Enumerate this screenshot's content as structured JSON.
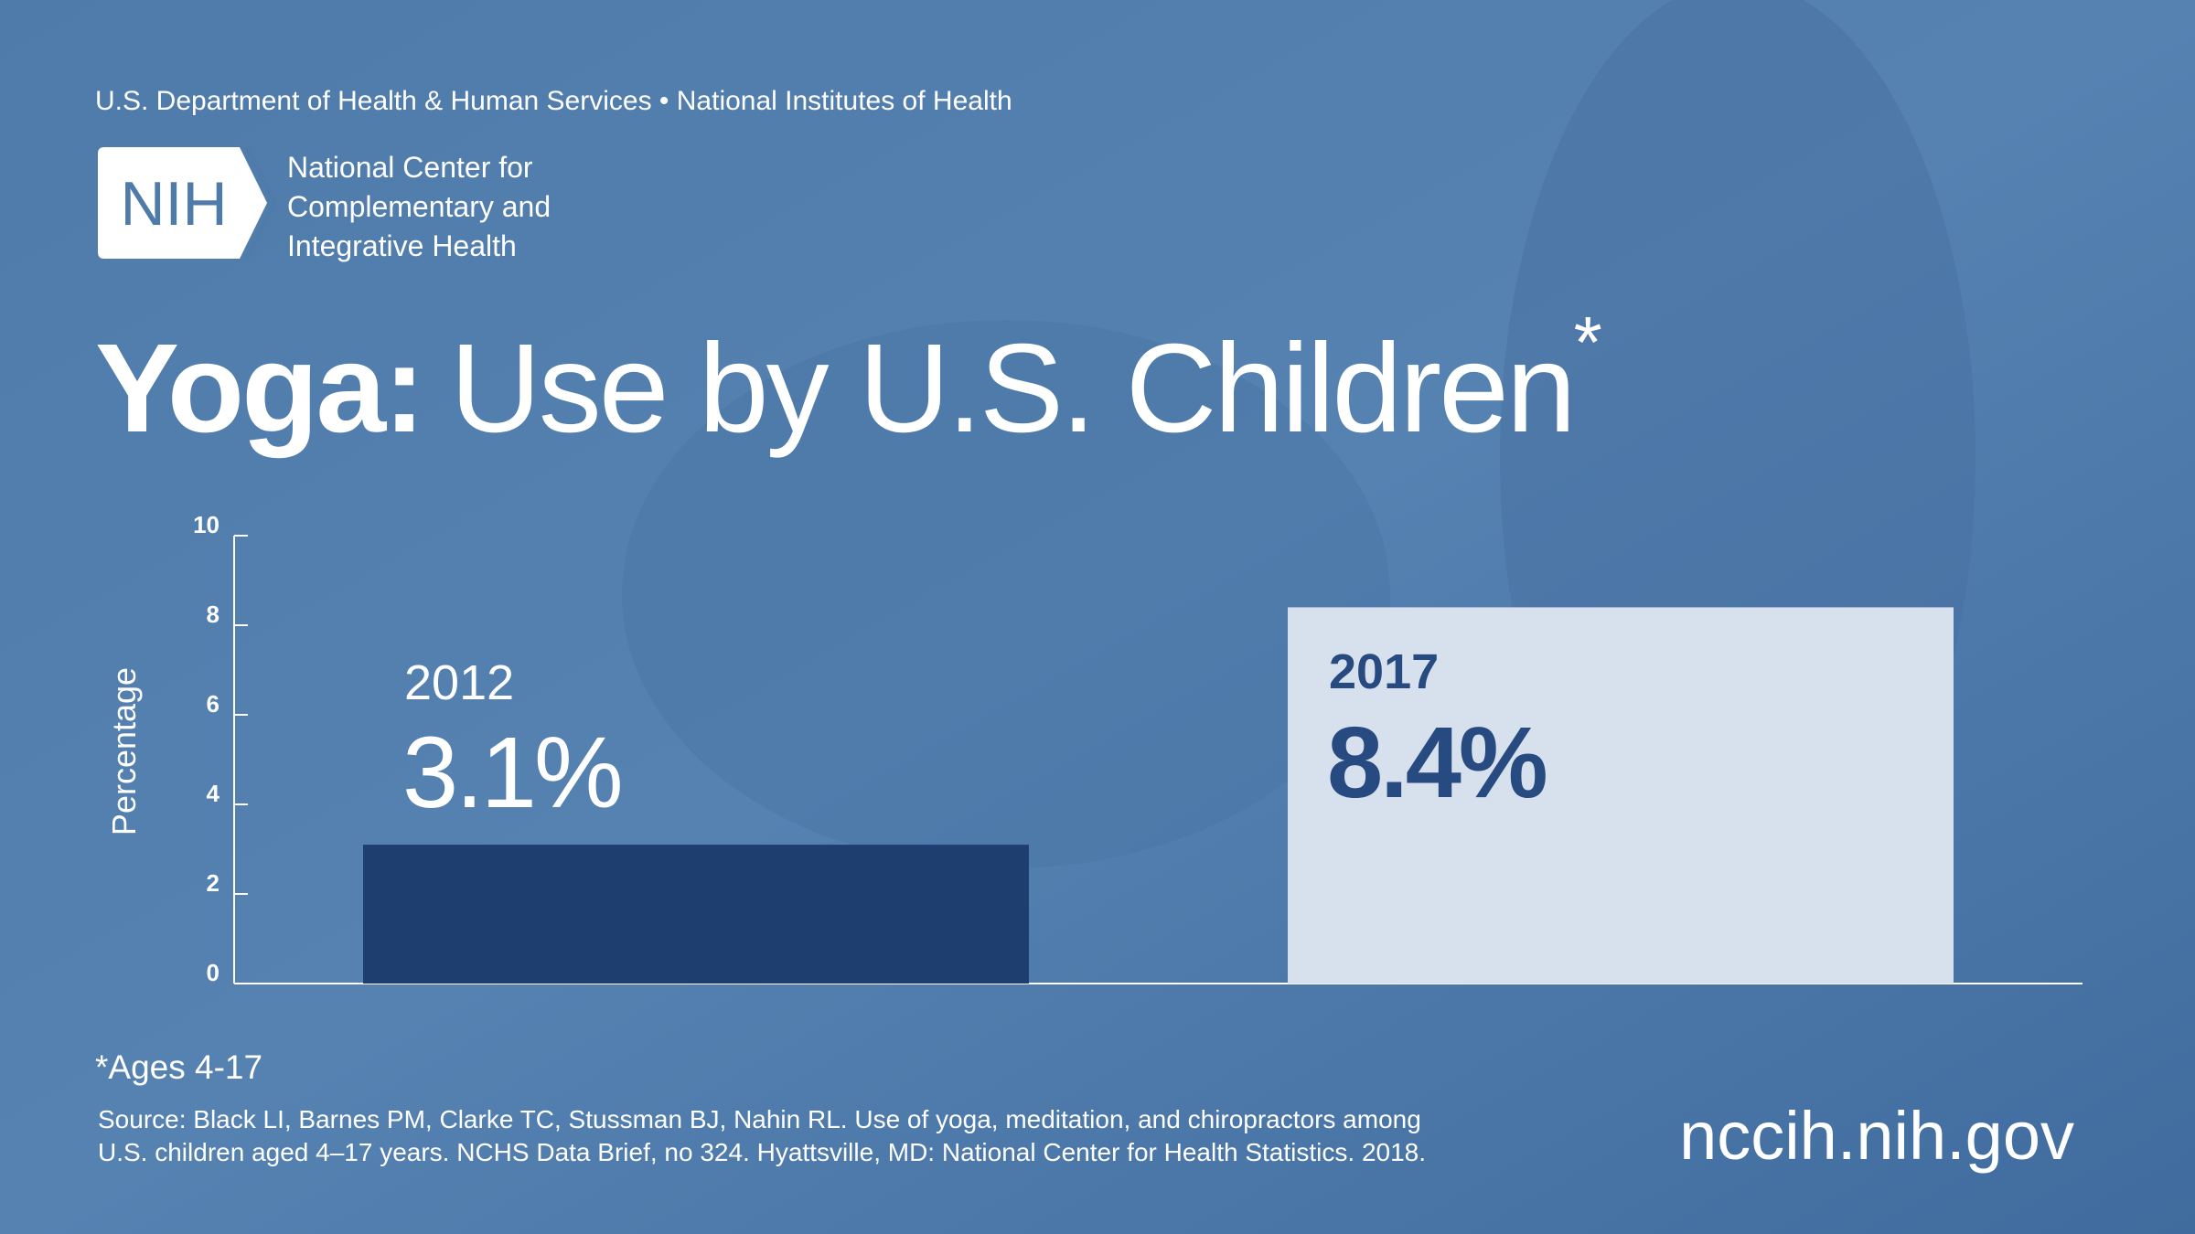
{
  "header": "U.S. Department of Health & Human Services • National Institutes of Health",
  "logo": {
    "mark": "NIH",
    "lines": [
      "National Center for",
      "Complementary and",
      "Integrative Health"
    ]
  },
  "chart_data": {
    "type": "bar",
    "title_bold": "Yoga:",
    "title": "Use by U.S. Children",
    "title_mark": "*",
    "ylabel": "Percentage",
    "categories": [
      "2012",
      "2017"
    ],
    "values": [
      3.1,
      8.4
    ],
    "value_labels": [
      "3.1%",
      "8.4%"
    ],
    "colors": [
      "#1f3e70",
      "#d7e1ed"
    ],
    "ylim": [
      0,
      10
    ],
    "yticks": [
      0,
      2,
      4,
      6,
      8,
      10
    ]
  },
  "footnote": "*Ages 4-17",
  "source": [
    "Source: Black LI, Barnes PM, Clarke TC, Stussman BJ, Nahin RL. Use of yoga, meditation, and chiropractors among",
    "U.S. children aged 4–17 years. NCHS Data Brief, no 324. Hyattsville, MD: National Center for Health Statistics. 2018."
  ],
  "url": "nccih.nih.gov"
}
